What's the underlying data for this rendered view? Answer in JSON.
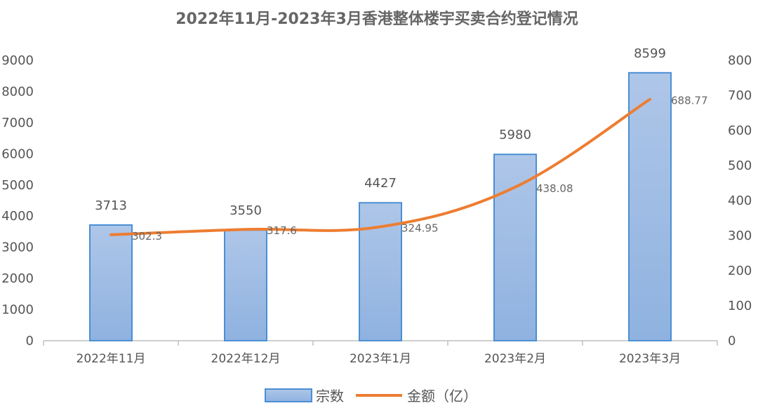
{
  "chart_data": {
    "type": "bar",
    "title": "2022年11月-2023年3月香港整体楼宇买卖合约登记情况",
    "categories": [
      "2022年11月",
      "2022年12月",
      "2023年1月",
      "2023年2月",
      "2023年3月"
    ],
    "series": [
      {
        "name": "宗数",
        "type": "bar",
        "axis": "left",
        "values": [
          3713,
          3550,
          4427,
          5980,
          8599
        ]
      },
      {
        "name": "金额（亿）",
        "type": "line",
        "axis": "right",
        "values": [
          302.3,
          317.6,
          324.95,
          438.08,
          688.77
        ]
      }
    ],
    "value_labels": {
      "bar": [
        "3713",
        "3550",
        "4427",
        "5980",
        "8599"
      ],
      "line": [
        "302.3",
        "317.6",
        "324.95",
        "438.08",
        "688.77"
      ]
    },
    "ylim_left": [
      0,
      9000
    ],
    "yticks_left": [
      "0",
      "1000",
      "2000",
      "3000",
      "4000",
      "5000",
      "6000",
      "7000",
      "8000",
      "9000"
    ],
    "ylim_right": [
      0,
      800
    ],
    "yticks_right": [
      "0",
      "100",
      "200",
      "300",
      "400",
      "500",
      "600",
      "700",
      "800"
    ],
    "xlabel": "",
    "ylabel": "",
    "grid": false,
    "legend_position": "bottom",
    "colors": {
      "bar_fill_top": "#aec6e8",
      "bar_fill_bottom": "#8fb2e0",
      "bar_stroke": "#4a8fd4",
      "line": "#ed7d31",
      "axis": "#bfbfbf",
      "text": "#555555"
    }
  }
}
